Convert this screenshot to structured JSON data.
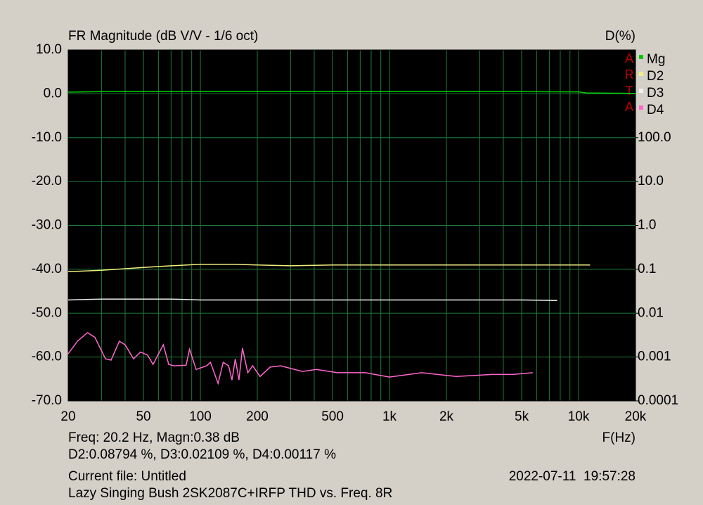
{
  "chart_data": {
    "type": "line",
    "title": "FR Magnitude (dB V/V - 1/6 oct)",
    "y2_label": "D(%)",
    "x_label": "F(Hz)",
    "logo": [
      "A",
      "R",
      "T",
      "A"
    ],
    "cursor_lines": [
      "Freq: 20.2 Hz, Magn:0.38 dB",
      "D2:0.08794 %, D3:0.02109 %, D4:0.00117 %"
    ],
    "current_file": "Current file: Untitled",
    "timestamp": "2022-07-11  19:57:28",
    "description": "Lazy Singing Bush 2SK2087C+IRFP THD vs. Freq. 8R",
    "xscale": "log",
    "y2scale": "log",
    "grid": true,
    "xlim": [
      20,
      20000
    ],
    "xticks": [
      20,
      50,
      100,
      200,
      500,
      {
        "value": 1000,
        "label": "1k"
      },
      {
        "value": 2000,
        "label": "2k"
      },
      {
        "value": 5000,
        "label": "5k"
      },
      {
        "value": 10000,
        "label": "10k"
      },
      {
        "value": 20000,
        "label": "20k"
      }
    ],
    "ylim": [
      -70,
      10
    ],
    "yticks": [
      {
        "value": 10,
        "label": "10.0"
      },
      {
        "value": 0,
        "label": "0.0"
      },
      {
        "value": -10,
        "label": "-10.0"
      },
      {
        "value": -20,
        "label": "-20.0"
      },
      {
        "value": -30,
        "label": "-30.0"
      },
      {
        "value": -40,
        "label": "-40.0"
      },
      {
        "value": -50,
        "label": "-50.0"
      },
      {
        "value": -60,
        "label": "-60.0"
      },
      {
        "value": -70,
        "label": "-70.0"
      }
    ],
    "y2lim": [
      0.0001,
      10000
    ],
    "y2ticks": [
      {
        "value": 100,
        "label": "100.0"
      },
      {
        "value": 10,
        "label": "10.0"
      },
      {
        "value": 1,
        "label": "1.0"
      },
      0.1,
      0.01,
      0.001,
      0.0001
    ],
    "series": [
      {
        "name": "Mg",
        "color": "#00c800",
        "axis": "y",
        "x": [
          20,
          30,
          100,
          1000,
          5000,
          10000,
          11000,
          20000
        ],
        "values": [
          0.38,
          0.5,
          0.5,
          0.5,
          0.5,
          0.45,
          0.2,
          0.1
        ]
      },
      {
        "name": "D2",
        "color": "#f0f080",
        "axis": "y2",
        "x": [
          20,
          30,
          50,
          70,
          100,
          150,
          200,
          300,
          500,
          1000,
          2000,
          5000,
          11500
        ],
        "values": [
          0.088,
          0.095,
          0.11,
          0.12,
          0.13,
          0.13,
          0.125,
          0.12,
          0.125,
          0.125,
          0.125,
          0.125,
          0.125
        ]
      },
      {
        "name": "D3",
        "color": "#f0f0f0",
        "axis": "y2",
        "x": [
          20,
          30,
          50,
          70,
          100,
          150,
          200,
          500,
          1000,
          2000,
          5000,
          7700
        ],
        "values": [
          0.02,
          0.021,
          0.021,
          0.021,
          0.02,
          0.02,
          0.02,
          0.02,
          0.02,
          0.02,
          0.02,
          0.0195
        ]
      },
      {
        "name": "D4",
        "color": "#ff66cc",
        "axis": "y2",
        "x": [
          20,
          22.4,
          25.3,
          27.7,
          31.5,
          33.7,
          37.3,
          40,
          44.3,
          48.2,
          52.6,
          56.2,
          63.7,
          68,
          72.6,
          84,
          87.6,
          95,
          108,
          113,
          124,
          132,
          141,
          147,
          153,
          160,
          167,
          178,
          189,
          207,
          234,
          266,
          346,
          410,
          531,
          745,
          1000,
          1480,
          2260,
          3480,
          4490,
          5720
        ],
        "values": [
          0.00119,
          0.0023,
          0.0036,
          0.0028,
          0.00091,
          0.00085,
          0.0023,
          0.0019,
          0.00091,
          0.0013,
          0.0011,
          0.00068,
          0.0019,
          0.00068,
          0.00063,
          0.00065,
          0.0015,
          0.00052,
          0.00063,
          0.00076,
          0.00025,
          0.00076,
          0.00063,
          0.0003,
          0.00091,
          0.0003,
          0.0016,
          0.00044,
          0.00063,
          0.00036,
          0.00059,
          0.00063,
          0.00047,
          0.00052,
          0.00044,
          0.00044,
          0.00035,
          0.00044,
          0.00036,
          0.0004,
          0.0004,
          0.00044
        ]
      }
    ]
  }
}
